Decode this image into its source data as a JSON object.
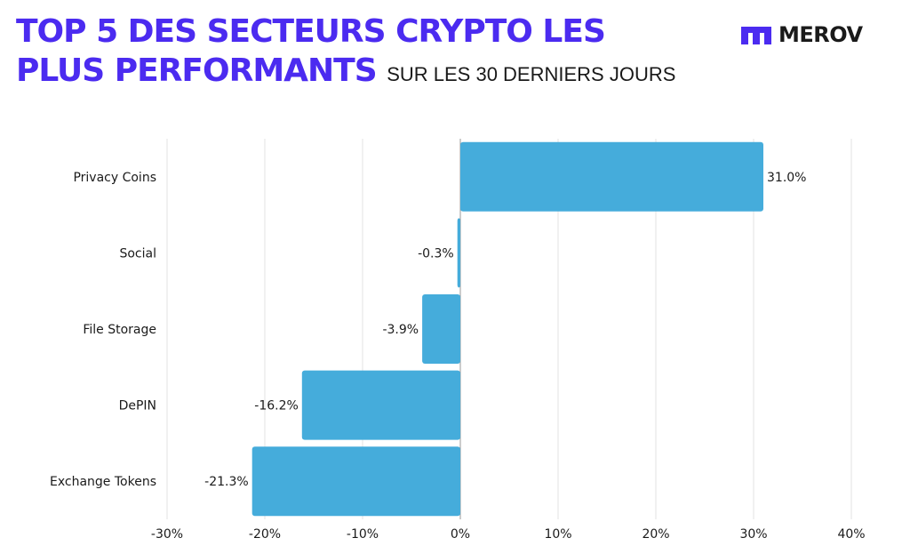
{
  "header": {
    "title_line1": "TOP 5 DES SECTEURS CRYPTO LES",
    "title_line2": "PLUS PERFORMANTS",
    "subtitle": "SUR LES 30 DERNIERS JOURS"
  },
  "brand": {
    "name": "MEROV",
    "logo_icon": "merov-m-icon"
  },
  "colors": {
    "title": "#4b2bf0",
    "bar": "#45acdb",
    "grid": "#e3e3e3"
  },
  "chart_data": {
    "type": "bar",
    "orientation": "horizontal",
    "title": "TOP 5 DES SECTEURS CRYPTO LES PLUS PERFORMANTS SUR LES 30 DERNIERS JOURS",
    "categories": [
      "Privacy Coins",
      "Social",
      "File Storage",
      "DePIN",
      "Exchange Tokens"
    ],
    "values": [
      31.0,
      -0.3,
      -3.9,
      -16.2,
      -21.3
    ],
    "value_labels": [
      "31.0%",
      "-0.3%",
      "-3.9%",
      "-16.2%",
      "-21.3%"
    ],
    "xlim": [
      -30,
      40
    ],
    "xticks": [
      -30,
      -20,
      -10,
      0,
      10,
      20,
      30,
      40
    ],
    "xtick_labels": [
      "-30%",
      "-20%",
      "-10%",
      "0%",
      "10%",
      "20%",
      "30%",
      "40%"
    ],
    "grid": true,
    "xlabel": "",
    "ylabel": ""
  }
}
